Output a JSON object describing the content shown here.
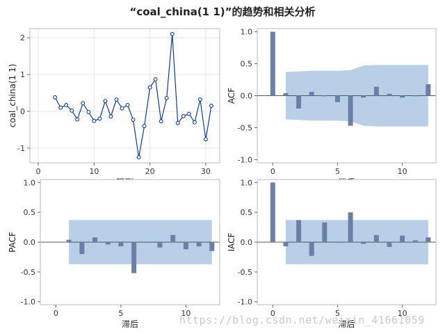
{
  "title": "“coal_china(1 1)”的趋势和相关分析",
  "watermark": "https://blog.csdn.net/weixin_41661059",
  "colors": {
    "line": "#0b3a9e",
    "bar": "#6b7fa7",
    "band": "#b9cfe8",
    "grid": "#e6e6e6",
    "frame": "#b8b8b8"
  },
  "chart_data": [
    {
      "id": "trend",
      "type": "line",
      "xlabel": "观测",
      "ylabel": "coal_china(1 1)",
      "xlim": [
        -1.5,
        32.5
      ],
      "ylim": [
        -1.4,
        2.25
      ],
      "xticks": [
        0,
        10,
        20,
        30
      ],
      "yticks": [
        -1,
        0,
        1,
        2
      ],
      "grid": true,
      "x": [
        3,
        4,
        5,
        6,
        7,
        8,
        9,
        10,
        11,
        12,
        13,
        14,
        15,
        16,
        17,
        18,
        19,
        20,
        21,
        22,
        23,
        24,
        25,
        26,
        27,
        28,
        29,
        30,
        31
      ],
      "values": [
        0.38,
        0.1,
        0.17,
        0.02,
        -0.22,
        0.22,
        -0.02,
        -0.26,
        -0.2,
        0.28,
        -0.14,
        0.32,
        0.08,
        0.17,
        -0.23,
        -1.25,
        -0.4,
        0.65,
        0.87,
        -0.27,
        0.36,
        2.1,
        -0.32,
        -0.13,
        -0.07,
        -0.3,
        0.32,
        -0.76,
        0.15
      ]
    },
    {
      "id": "acf",
      "type": "bar",
      "xlabel": "滞后",
      "ylabel": "ACF",
      "xlim": [
        -1.2,
        12.6
      ],
      "ylim": [
        -1.05,
        1.05
      ],
      "xticks": [
        0,
        5,
        10
      ],
      "yticks": [
        -1.0,
        -0.5,
        0.0,
        0.5,
        1.0
      ],
      "categories": [
        0,
        1,
        2,
        3,
        4,
        5,
        6,
        7,
        8,
        9,
        10,
        11,
        12
      ],
      "values": [
        1.0,
        0.04,
        -0.2,
        0.06,
        0.0,
        -0.1,
        -0.47,
        -0.03,
        0.14,
        0.03,
        -0.03,
        0.0,
        0.18
      ],
      "band_upper": [
        0.37,
        0.38,
        0.39,
        0.39,
        0.39,
        0.4,
        0.47,
        0.48,
        0.48,
        0.48,
        0.48,
        0.48
      ],
      "band_lower": [
        -0.37,
        -0.38,
        -0.39,
        -0.39,
        -0.39,
        -0.4,
        -0.47,
        -0.48,
        -0.48,
        -0.48,
        -0.48,
        -0.48
      ]
    },
    {
      "id": "pacf",
      "type": "bar",
      "xlabel": "滞后",
      "ylabel": "PACF",
      "xlim": [
        -1.2,
        12.6
      ],
      "ylim": [
        -1.05,
        1.05
      ],
      "xticks": [
        0,
        5,
        10
      ],
      "yticks": [
        -1.0,
        -0.5,
        0.0,
        0.5,
        1.0
      ],
      "categories": [
        1,
        2,
        3,
        4,
        5,
        6,
        7,
        8,
        9,
        10,
        11,
        12
      ],
      "values": [
        0.04,
        -0.2,
        0.08,
        -0.04,
        -0.07,
        -0.52,
        -0.01,
        -0.09,
        0.12,
        -0.12,
        -0.07,
        -0.15
      ],
      "band_upper": [
        0.37,
        0.37,
        0.37,
        0.37,
        0.37,
        0.37,
        0.37,
        0.37,
        0.37,
        0.37,
        0.37,
        0.37
      ],
      "band_lower": [
        -0.37,
        -0.37,
        -0.37,
        -0.37,
        -0.37,
        -0.37,
        -0.37,
        -0.37,
        -0.37,
        -0.37,
        -0.37,
        -0.37
      ]
    },
    {
      "id": "iacf",
      "type": "bar",
      "xlabel": "滞后",
      "ylabel": "IACF",
      "xlim": [
        -1.2,
        12.6
      ],
      "ylim": [
        -1.05,
        1.05
      ],
      "xticks": [
        0,
        5,
        10
      ],
      "yticks": [
        -1.0,
        -0.5,
        0.0,
        0.5,
        1.0
      ],
      "categories": [
        0,
        1,
        2,
        3,
        4,
        5,
        6,
        7,
        8,
        9,
        10,
        11,
        12
      ],
      "values": [
        1.0,
        -0.07,
        0.37,
        -0.23,
        0.33,
        0.01,
        0.5,
        -0.03,
        0.12,
        -0.08,
        0.11,
        0.03,
        0.08
      ],
      "band_upper": [
        0.37,
        0.37,
        0.37,
        0.37,
        0.37,
        0.37,
        0.37,
        0.37,
        0.37,
        0.37,
        0.37,
        0.37
      ],
      "band_lower": [
        -0.37,
        -0.37,
        -0.37,
        -0.37,
        -0.37,
        -0.37,
        -0.37,
        -0.37,
        -0.37,
        -0.37,
        -0.37,
        -0.37
      ]
    }
  ]
}
